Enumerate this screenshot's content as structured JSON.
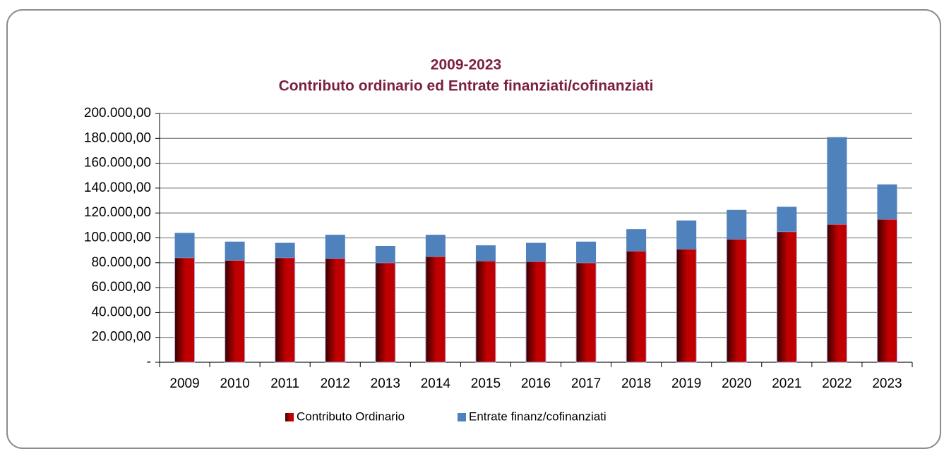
{
  "chart_data": {
    "type": "stacked_bar",
    "title": "2009-2023",
    "subtitle": "Contributo ordinario ed Entrate finanziati/cofinanziati",
    "categories": [
      "2009",
      "2010",
      "2011",
      "2012",
      "2013",
      "2014",
      "2015",
      "2016",
      "2017",
      "2018",
      "2019",
      "2020",
      "2021",
      "2022",
      "2023"
    ],
    "series": [
      {
        "name": "Contributo Ordinario",
        "color": "#c00000",
        "values": [
          84000,
          82000,
          84000,
          83500,
          80000,
          85000,
          81500,
          81000,
          80000,
          89500,
          91000,
          99000,
          105000,
          111000,
          115000
        ]
      },
      {
        "name": "Entrate finanz/cofinanziati",
        "color": "#4f81bd",
        "values": [
          20000,
          15000,
          12000,
          19000,
          13500,
          17500,
          12500,
          15000,
          17000,
          17500,
          23000,
          23500,
          20000,
          70000,
          28000
        ]
      }
    ],
    "ylim": [
      0,
      200000
    ],
    "yticks": [
      {
        "value": 0,
        "label": "-"
      },
      {
        "value": 20000,
        "label": "20.000,00"
      },
      {
        "value": 40000,
        "label": "40.000,00"
      },
      {
        "value": 60000,
        "label": "60.000,00"
      },
      {
        "value": 80000,
        "label": "80.000,00"
      },
      {
        "value": 100000,
        "label": "100.000,00"
      },
      {
        "value": 120000,
        "label": "120.000,00"
      },
      {
        "value": 140000,
        "label": "140.000,00"
      },
      {
        "value": 160000,
        "label": "160.000,00"
      },
      {
        "value": 180000,
        "label": "180.000,00"
      },
      {
        "value": 200000,
        "label": "200.000,00"
      }
    ],
    "grid": true,
    "legend": "bottom"
  }
}
